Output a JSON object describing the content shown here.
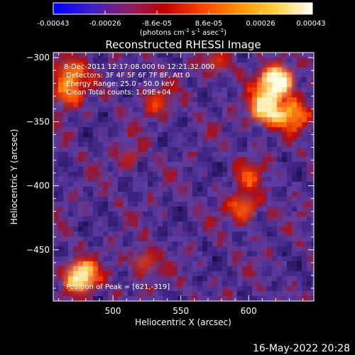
{
  "colorbar": {
    "tick_labels": [
      "-0.00043",
      "-0.00026",
      "-8.6e-05",
      "8.6e-05",
      "0.00026",
      "0.00043"
    ],
    "unit_prefix": "(photons cm",
    "unit_sup1": "-2",
    "unit_mid1": " s",
    "unit_sup2": "-1",
    "unit_mid2": " asec",
    "unit_sup3": "-2",
    "unit_suffix": ")",
    "range": [
      -0.00043,
      0.00043
    ],
    "colors": [
      "#0000ff",
      "#3a1fc8",
      "#8a1f6a",
      "#c00000",
      "#ff4000",
      "#ff9000",
      "#ffd040",
      "#ffffff"
    ]
  },
  "plot": {
    "title": "Reconstructed RHESSI Image",
    "annotation_lines": [
      "8-Dec-2011 12:17:08.000 to 12:21:32.000",
      "Detectors: 3F 4F 5F 6F 7F 8F, Att 0",
      "Energy Range: 25.0 - 50.0 keV",
      "Clean    Total counts: 1.09E+04"
    ],
    "peak_label": "Position of Peak = [621,-319]"
  },
  "chart_data": {
    "type": "heatmap",
    "title": "Reconstructed RHESSI Image",
    "xlabel": "Heliocentric X (arcsec)",
    "ylabel": "Heliocentric Y (arcsec)",
    "xlim": [
      456,
      648
    ],
    "ylim": [
      -490,
      -296
    ],
    "xticks": [
      500,
      550,
      600
    ],
    "yticks": [
      -300,
      -350,
      -400,
      -450
    ],
    "peak": [
      621,
      -319
    ],
    "colorbar_range": [
      -0.00043,
      0.00043
    ],
    "blobs": [
      {
        "x": 621,
        "y": -319,
        "value": 1.0
      },
      {
        "x": 612,
        "y": -340,
        "value": 0.85
      },
      {
        "x": 632,
        "y": -345,
        "value": 0.6
      },
      {
        "x": 476,
        "y": -471,
        "value": 0.9
      },
      {
        "x": 469,
        "y": -312,
        "value": 0.55
      },
      {
        "x": 466,
        "y": -328,
        "value": 0.5
      },
      {
        "x": 596,
        "y": -418,
        "value": 0.5
      },
      {
        "x": 600,
        "y": -392,
        "value": 0.35
      },
      {
        "x": 523,
        "y": -460,
        "value": 0.35
      },
      {
        "x": 532,
        "y": -335,
        "value": 0.35
      },
      {
        "x": 576,
        "y": -304,
        "value": 0.3
      },
      {
        "x": 512,
        "y": -378,
        "value": 0.2
      }
    ]
  },
  "footer": {
    "timestamp": "16-May-2022 20:28"
  }
}
